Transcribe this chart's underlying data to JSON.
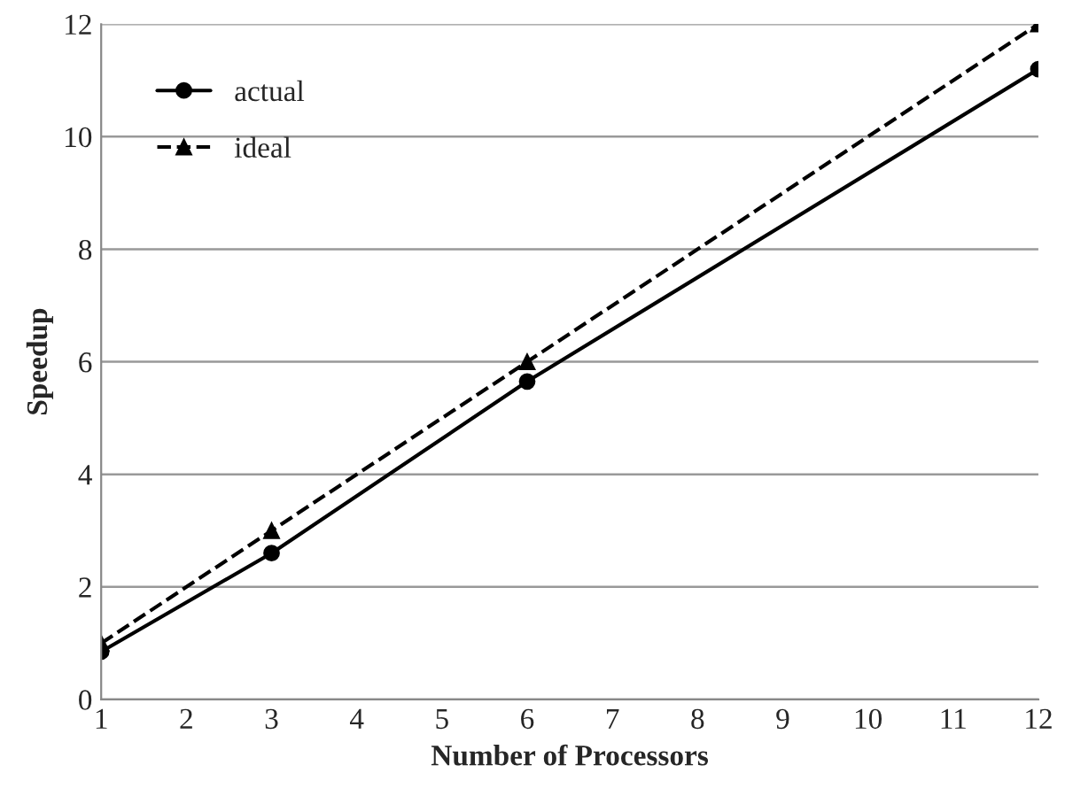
{
  "chart_data": {
    "type": "line",
    "xlabel": "Number of Processors",
    "ylabel": "Speedup",
    "x": [
      1,
      3,
      6,
      12
    ],
    "series": [
      {
        "name": "actual",
        "color": "#000000",
        "values": [
          0.85,
          2.6,
          5.65,
          11.2
        ],
        "marker": "circle",
        "line_style": "solid"
      },
      {
        "name": "ideal",
        "color": "#000000",
        "values": [
          1,
          3,
          6,
          12
        ],
        "marker": "triangle",
        "line_style": "dashed"
      }
    ],
    "xlim": [
      1,
      12
    ],
    "xticks": [
      1,
      2,
      3,
      4,
      5,
      6,
      7,
      8,
      9,
      10,
      11,
      12
    ],
    "ylim": [
      0,
      12
    ],
    "yticks": [
      0,
      2,
      4,
      6,
      8,
      10,
      12
    ],
    "grid": "y",
    "legend": "top left"
  }
}
